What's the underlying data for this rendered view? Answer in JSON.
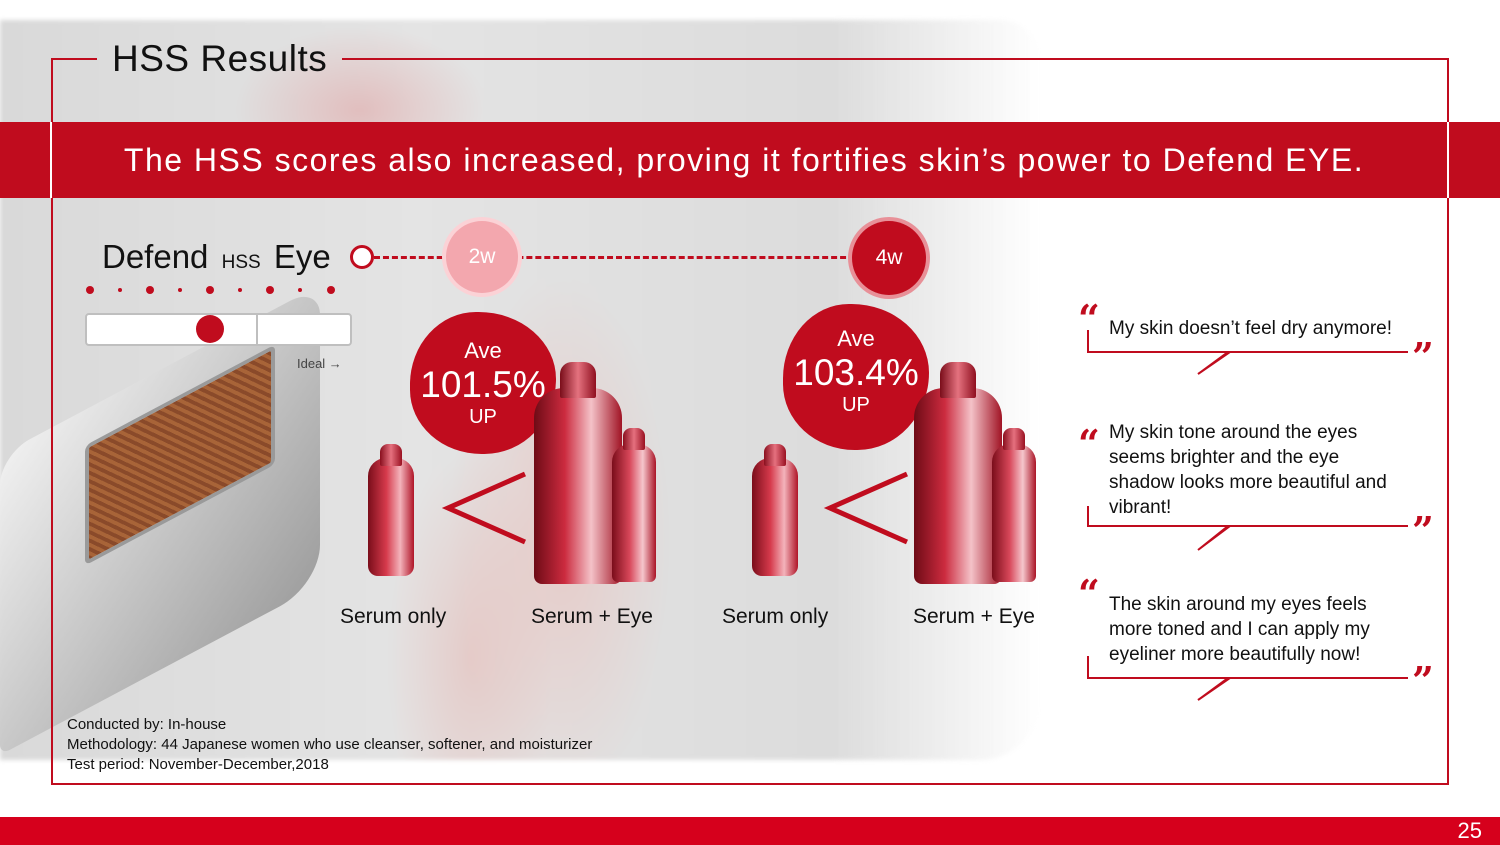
{
  "section_title": "HSS Results",
  "banner_text": "The HSS scores also increased, proving it fortifies skin’s power to Defend EYE.",
  "defend": {
    "prefix": "Defend",
    "middle": "HSS",
    "suffix": "Eye"
  },
  "weeks": [
    "2w",
    "4w"
  ],
  "gauge": {
    "ideal_label": "Ideal →",
    "level": 0.47
  },
  "results": [
    {
      "ave_label": "Ave",
      "percent": "101.5%",
      "up_label": "UP"
    },
    {
      "ave_label": "Ave",
      "percent": "103.4%",
      "up_label": "UP"
    }
  ],
  "product_labels": [
    "Serum only",
    "Serum + Eye",
    "Serum only",
    "Serum + Eye"
  ],
  "method": {
    "conducted": "Conducted by: In-house",
    "methodology": "Methodology: 44 Japanese women who use cleanser, softener, and moisturizer",
    "period": "Test period: November-December,2018"
  },
  "quotes": [
    "My skin doesn’t feel dry anymore!",
    "My skin tone around the eyes seems brighter and the eye shadow looks more beautiful and vibrant!",
    "The skin around my eyes feels more toned and I can apply my eyeliner more beautifully now!"
  ],
  "colors": {
    "brand_red": "#c00c1e",
    "footer_red": "#d6001c",
    "pink": "#f3a7ae"
  },
  "page_number": "25"
}
